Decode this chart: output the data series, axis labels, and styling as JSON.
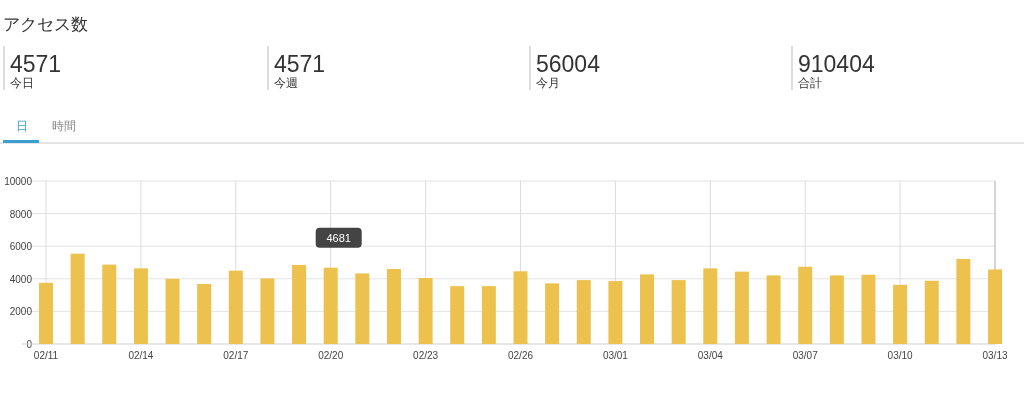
{
  "chart_data": [
    {
      "type": "other",
      "title": "アクセス数",
      "annotations": [
        "4571",
        "今日",
        "4571",
        "今週",
        "56004",
        "今月",
        "910404",
        "合計",
        "日",
        "時間"
      ]
    },
    {
      "type": "bar",
      "categories": [
        "02/11",
        null,
        null,
        "02/14",
        null,
        null,
        "02/17",
        null,
        null,
        "02/20",
        null,
        null,
        "02/23",
        null,
        null,
        "02/26",
        null,
        null,
        "03/01",
        null,
        null,
        "03/04",
        null,
        null,
        "03/07",
        null,
        null,
        "03/10",
        null,
        null,
        "03/13"
      ],
      "values": [
        3750,
        5540,
        4870,
        4640,
        4000,
        3680,
        4500,
        4020,
        4850,
        4681,
        4330,
        4600,
        4050,
        3550,
        3550,
        4460,
        3720,
        3920,
        3860,
        4270,
        3920,
        4640,
        4440,
        4210,
        4740,
        4210,
        4250,
        3630,
        3880,
        5220,
        4571
      ],
      "color": "#ecc14d",
      "ylim": [
        0,
        10000
      ],
      "yticks": [
        0,
        2000,
        4000,
        6000,
        8000,
        10000
      ],
      "grid": true,
      "annotations": [
        {
          "text": "4681",
          "x": "02/20",
          "y": 4681
        }
      ]
    }
  ]
}
